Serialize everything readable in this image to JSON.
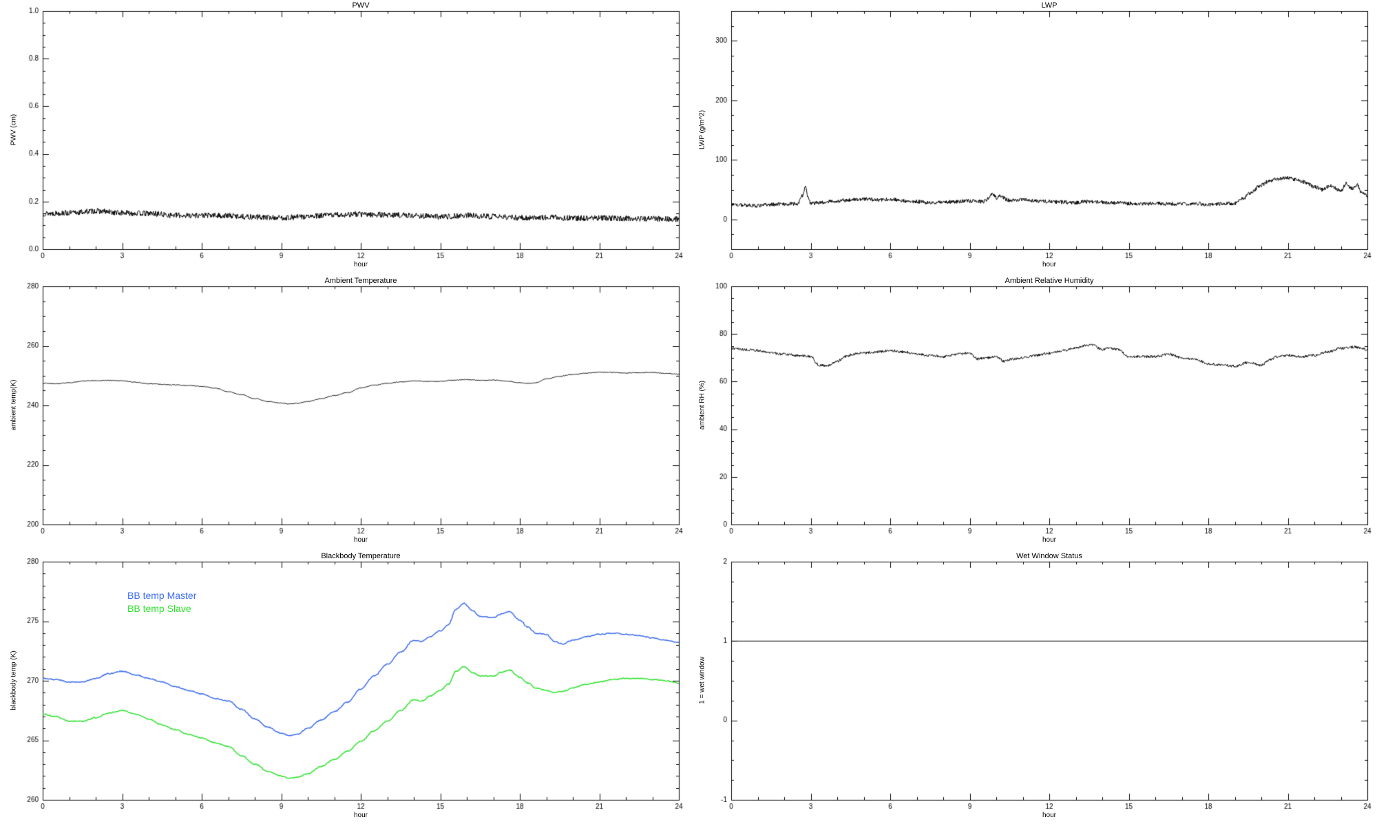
{
  "page": {
    "background": "#ffffff",
    "axis_color": "#000000"
  },
  "chart_data": [
    {
      "id": "pwv",
      "type": "line",
      "title": "PWV",
      "xlabel": "hour",
      "ylabel": "PWV (cm)",
      "axis_color": "#000000",
      "xlim": [
        0,
        24
      ],
      "ylim": [
        0.0,
        1.0
      ],
      "xtick_vals": [
        0,
        3,
        6,
        9,
        12,
        15,
        18,
        21,
        24
      ],
      "xtick_labels": [
        "0",
        "3",
        "6",
        "9",
        "12",
        "15",
        "18",
        "21",
        "24"
      ],
      "xminor": 1,
      "ytick_vals": [
        0.0,
        0.2,
        0.4,
        0.6,
        0.8,
        1.0
      ],
      "ytick_labels": [
        "0.0",
        "0.2",
        "0.4",
        "0.6",
        "0.8",
        "1.0"
      ],
      "yminor": 0.05,
      "series": [
        {
          "name": "PWV",
          "color": "#000000",
          "width": 1,
          "noise": 0.012,
          "samples": 1500,
          "x": [
            0,
            1,
            2,
            3,
            4,
            5,
            6,
            7,
            8,
            9,
            10,
            11,
            12,
            13,
            14,
            15,
            16,
            17,
            18,
            19,
            20,
            21,
            22,
            23,
            24
          ],
          "y": [
            0.15,
            0.152,
            0.16,
            0.152,
            0.15,
            0.142,
            0.142,
            0.14,
            0.135,
            0.132,
            0.137,
            0.144,
            0.147,
            0.144,
            0.141,
            0.136,
            0.142,
            0.137,
            0.132,
            0.134,
            0.13,
            0.131,
            0.129,
            0.128,
            0.126
          ]
        }
      ]
    },
    {
      "id": "lwp",
      "type": "line",
      "title": "LWP",
      "xlabel": "hour",
      "ylabel": "LWP (g/m^2)",
      "axis_color": "#000000",
      "xlim": [
        0,
        24
      ],
      "ylim": [
        -50,
        350
      ],
      "xtick_vals": [
        0,
        3,
        6,
        9,
        12,
        15,
        18,
        21,
        24
      ],
      "xtick_labels": [
        "0",
        "3",
        "6",
        "9",
        "12",
        "15",
        "18",
        "21",
        "24"
      ],
      "xminor": 1,
      "ytick_vals": [
        0,
        100,
        200,
        300
      ],
      "ytick_labels": [
        "0",
        "100",
        "200",
        "300"
      ],
      "yminor": 25,
      "series": [
        {
          "name": "LWP",
          "color": "#000000",
          "width": 1,
          "noise": 3.2,
          "samples": 1500,
          "x": [
            0,
            0.5,
            1,
            1.5,
            2,
            2.5,
            2.7,
            2.8,
            2.9,
            3,
            3.5,
            4,
            4.5,
            5,
            5.5,
            6,
            6.5,
            7,
            7.5,
            8,
            8.5,
            9,
            9.5,
            9.9,
            10,
            10.1,
            10.5,
            11,
            11.5,
            12,
            12.5,
            13,
            13.5,
            14,
            14.5,
            15,
            15.5,
            16,
            16.5,
            17,
            17.5,
            18,
            18.5,
            19,
            19.3,
            19.6,
            20,
            20.3,
            20.6,
            21,
            21.3,
            21.6,
            22,
            22.3,
            22.6,
            23,
            23.2,
            23.4,
            23.6,
            23.8,
            24
          ],
          "y": [
            25,
            24,
            23,
            25,
            26,
            26,
            40,
            55,
            38,
            27,
            29,
            31,
            33,
            34,
            33,
            34,
            31,
            30,
            28,
            29,
            30,
            31,
            30,
            42,
            36,
            40,
            32,
            33,
            31,
            30,
            29,
            28,
            30,
            29,
            28,
            27,
            26,
            27,
            26,
            26,
            27,
            25,
            26,
            27,
            35,
            45,
            58,
            65,
            68,
            70,
            67,
            63,
            55,
            50,
            57,
            48,
            60,
            52,
            58,
            45,
            40
          ]
        }
      ]
    },
    {
      "id": "ambient-temperature",
      "type": "line",
      "title": "Ambient Temperature",
      "xlabel": "hour",
      "ylabel": "ambient temp(K)",
      "axis_color": "#000000",
      "xlim": [
        0,
        24
      ],
      "ylim": [
        200,
        280
      ],
      "xtick_vals": [
        0,
        3,
        6,
        9,
        12,
        15,
        18,
        21,
        24
      ],
      "xtick_labels": [
        "0",
        "3",
        "6",
        "9",
        "12",
        "15",
        "18",
        "21",
        "24"
      ],
      "xminor": 1,
      "ytick_vals": [
        200,
        220,
        240,
        260,
        280
      ],
      "ytick_labels": [
        "200",
        "220",
        "240",
        "260",
        "280"
      ],
      "yminor": 5,
      "series": [
        {
          "name": "ambient temp",
          "color": "#000000",
          "width": 1,
          "noise": 0.12,
          "samples": 1000,
          "x": [
            0,
            0.5,
            1,
            1.5,
            2,
            2.5,
            3,
            3.5,
            4,
            4.5,
            5,
            5.5,
            6,
            6.5,
            7,
            7.5,
            8,
            8.5,
            9,
            9.3,
            9.6,
            10,
            10.5,
            11,
            11.5,
            12,
            12.5,
            13,
            13.5,
            14,
            14.5,
            15,
            15.5,
            16,
            16.5,
            17,
            17.5,
            18,
            18.3,
            18.6,
            19,
            19.5,
            20,
            20.5,
            21,
            21.5,
            22,
            22.5,
            23,
            23.5,
            24
          ],
          "y": [
            247.5,
            247.3,
            247.6,
            248.2,
            248.3,
            248.4,
            248.3,
            247.8,
            247.3,
            247.1,
            246.9,
            246.7,
            246.4,
            245.8,
            244.6,
            243.6,
            242.3,
            241.3,
            240.8,
            240.5,
            240.7,
            241.3,
            242.3,
            243.3,
            244.3,
            245.9,
            246.8,
            247.4,
            247.9,
            248.2,
            248.1,
            248.1,
            248.5,
            248.7,
            248.4,
            248.5,
            248.2,
            247.6,
            247.4,
            247.6,
            248.9,
            249.8,
            250.4,
            250.8,
            251.2,
            251.1,
            250.9,
            251.0,
            251.1,
            250.8,
            250.5
          ]
        }
      ]
    },
    {
      "id": "ambient-relative-humidity",
      "type": "line",
      "title": "Ambient Relative Humidity",
      "xlabel": "hour",
      "ylabel": "ambient RH (%)",
      "axis_color": "#000000",
      "xlim": [
        0,
        24
      ],
      "ylim": [
        0,
        100
      ],
      "xtick_vals": [
        0,
        3,
        6,
        9,
        12,
        15,
        18,
        21,
        24
      ],
      "xtick_labels": [
        "0",
        "3",
        "6",
        "9",
        "12",
        "15",
        "18",
        "21",
        "24"
      ],
      "xminor": 1,
      "ytick_vals": [
        0,
        20,
        40,
        60,
        80,
        100
      ],
      "ytick_labels": [
        "0",
        "20",
        "40",
        "60",
        "80",
        "100"
      ],
      "yminor": 5,
      "series": [
        {
          "name": "ambient RH",
          "color": "#000000",
          "width": 1,
          "noise": 0.55,
          "samples": 1300,
          "x": [
            0,
            0.5,
            1,
            1.5,
            2,
            2.5,
            3,
            3.3,
            3.6,
            4,
            4.3,
            4.6,
            5,
            5.5,
            6,
            6.5,
            7,
            7.5,
            8,
            8.5,
            9,
            9.3,
            9.6,
            10,
            10.3,
            10.6,
            11,
            11.5,
            12,
            12.5,
            13,
            13.3,
            13.6,
            14,
            14.3,
            14.6,
            15,
            15.5,
            16,
            16.5,
            17,
            17.5,
            18,
            18.5,
            19,
            19.5,
            20,
            20.3,
            20.6,
            21,
            21.5,
            22,
            22.5,
            23,
            23.5,
            24
          ],
          "y": [
            74,
            73.5,
            73,
            72,
            71.5,
            71,
            70.5,
            67,
            66.5,
            68.5,
            70.5,
            71.5,
            72,
            72.5,
            73,
            72.5,
            71.5,
            71,
            70.5,
            71.5,
            72,
            69.5,
            70,
            70.5,
            68.5,
            69.5,
            70,
            71,
            72,
            73,
            74,
            75,
            75.5,
            73.5,
            74,
            73.5,
            70.5,
            70.5,
            70.5,
            71.5,
            70,
            69.5,
            67.5,
            67,
            66.5,
            68,
            67,
            69,
            70.5,
            71,
            70.5,
            71,
            72.5,
            74,
            74.5,
            73.5
          ]
        }
      ]
    },
    {
      "id": "blackbody-temperature",
      "type": "line",
      "title": "Blackbody Temperature",
      "xlabel": "hour",
      "ylabel": "blackbody temp (K)",
      "axis_color": "#000000",
      "xlim": [
        0,
        24
      ],
      "ylim": [
        260,
        280
      ],
      "xtick_vals": [
        0,
        3,
        6,
        9,
        12,
        15,
        18,
        21,
        24
      ],
      "xtick_labels": [
        "0",
        "3",
        "6",
        "9",
        "12",
        "15",
        "18",
        "21",
        "24"
      ],
      "xminor": 1,
      "ytick_vals": [
        260,
        265,
        270,
        275,
        280
      ],
      "ytick_labels": [
        "260",
        "265",
        "270",
        "275",
        "280"
      ],
      "yminor": 1,
      "series": [
        {
          "name": "BB temp Master",
          "color": "#3c6cf0",
          "width": 1.5,
          "noise": 0.04,
          "samples": 700,
          "x": [
            0,
            0.5,
            1,
            1.5,
            2,
            2.5,
            3,
            3.5,
            4,
            4.5,
            5,
            5.5,
            6,
            6.5,
            7,
            7.5,
            8,
            8.5,
            9,
            9.3,
            9.6,
            10,
            10.5,
            11,
            11.5,
            12,
            12.5,
            13,
            13.5,
            14,
            14.3,
            14.6,
            15,
            15.3,
            15.6,
            15.9,
            16.2,
            16.5,
            17,
            17.3,
            17.6,
            18,
            18.3,
            18.6,
            19,
            19.3,
            19.6,
            20,
            20.5,
            21,
            21.5,
            22,
            22.5,
            23,
            23.5,
            24
          ],
          "y": [
            270.2,
            270.1,
            269.9,
            269.9,
            270.2,
            270.6,
            270.8,
            270.5,
            270.2,
            269.9,
            269.5,
            269.2,
            268.9,
            268.5,
            268.3,
            267.6,
            266.8,
            266.1,
            265.6,
            265.4,
            265.5,
            266.0,
            266.7,
            267.4,
            268.2,
            269.3,
            270.4,
            271.4,
            272.4,
            273.4,
            273.3,
            273.7,
            274.2,
            274.7,
            276.0,
            276.5,
            275.9,
            275.4,
            275.3,
            275.6,
            275.8,
            275.1,
            274.5,
            274.0,
            273.9,
            273.3,
            273.1,
            273.4,
            273.7,
            273.9,
            274.0,
            273.9,
            273.8,
            273.6,
            273.4,
            273.2
          ]
        },
        {
          "name": "BB temp Slave",
          "color": "#2fe32f",
          "width": 1.5,
          "noise": 0.04,
          "samples": 700,
          "x": [
            0,
            0.5,
            1,
            1.5,
            2,
            2.5,
            3,
            3.5,
            4,
            4.5,
            5,
            5.5,
            6,
            6.5,
            7,
            7.5,
            8,
            8.5,
            9,
            9.3,
            9.6,
            10,
            10.5,
            11,
            11.5,
            12,
            12.5,
            13,
            13.5,
            14,
            14.3,
            14.6,
            15,
            15.3,
            15.6,
            15.9,
            16.2,
            16.5,
            17,
            17.3,
            17.6,
            18,
            18.3,
            18.6,
            19,
            19.3,
            19.6,
            20,
            20.5,
            21,
            21.5,
            22,
            22.5,
            23,
            23.5,
            24
          ],
          "y": [
            267.2,
            267.0,
            266.6,
            266.6,
            266.9,
            267.3,
            267.5,
            267.2,
            266.8,
            266.3,
            265.9,
            265.5,
            265.2,
            264.8,
            264.5,
            263.7,
            263.0,
            262.4,
            262.0,
            261.8,
            261.9,
            262.2,
            262.8,
            263.4,
            264.1,
            264.9,
            265.8,
            266.6,
            267.5,
            268.4,
            268.3,
            268.7,
            269.2,
            269.7,
            270.8,
            271.2,
            270.7,
            270.4,
            270.4,
            270.7,
            270.9,
            270.3,
            269.8,
            269.4,
            269.2,
            269.0,
            269.1,
            269.4,
            269.7,
            269.9,
            270.1,
            270.2,
            270.2,
            270.1,
            270.0,
            269.8
          ]
        }
      ]
    },
    {
      "id": "wet-window-status",
      "type": "line",
      "title": "Wet Window Status",
      "xlabel": "hour",
      "ylabel": "1 = wet window",
      "axis_color": "#000000",
      "xlim": [
        0,
        24
      ],
      "ylim": [
        -1,
        2
      ],
      "xtick_vals": [
        0,
        3,
        6,
        9,
        12,
        15,
        18,
        21,
        24
      ],
      "xtick_labels": [
        "0",
        "3",
        "6",
        "9",
        "12",
        "15",
        "18",
        "21",
        "24"
      ],
      "xminor": 1,
      "ytick_vals": [
        -1,
        0,
        1,
        2
      ],
      "ytick_labels": [
        "-1",
        "0",
        "1",
        "2"
      ],
      "yminor": 0.25,
      "series": [
        {
          "name": "wet window flag",
          "color": "#000000",
          "width": 1,
          "noise": 0,
          "samples": 2,
          "x": [
            0,
            24
          ],
          "y": [
            1,
            1
          ]
        }
      ]
    }
  ]
}
